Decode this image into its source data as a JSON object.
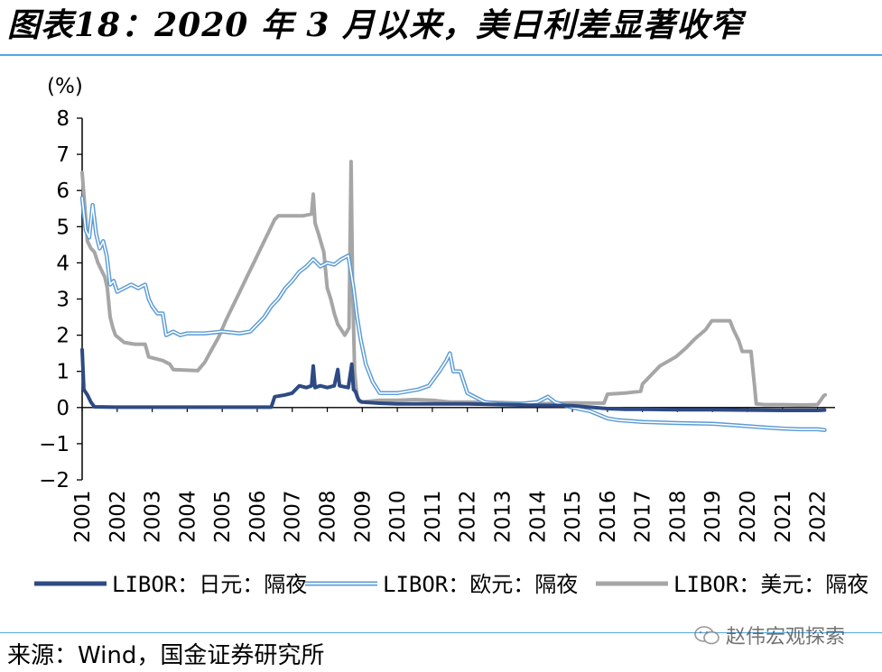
{
  "header": {
    "title": "图表18：2020 年 3 月以来，美日利差显著收窄"
  },
  "footer": {
    "source": "来源：Wind，国金证券研究所",
    "watermark": "赵伟宏观探索"
  },
  "chart_data": {
    "type": "line",
    "title": "",
    "unit_label": "(%)",
    "xlabel": "",
    "ylabel": "",
    "ylim": [
      -2,
      8
    ],
    "xlim": [
      2001,
      2022.5
    ],
    "yticks": [
      "8",
      "7",
      "6",
      "5",
      "4",
      "3",
      "2",
      "1",
      "0",
      "−1",
      "−2"
    ],
    "xticks": [
      "2001",
      "2002",
      "2003",
      "2004",
      "2005",
      "2006",
      "2007",
      "2008",
      "2009",
      "2010",
      "2011",
      "2012",
      "2013",
      "2014",
      "2015",
      "2016",
      "2017",
      "2018",
      "2019",
      "2020",
      "2021",
      "2022"
    ],
    "legend_position": "bottom",
    "grid": false,
    "series": [
      {
        "name": "LIBOR：美元：隔夜",
        "color": "#a6a6a6",
        "style": "thick",
        "points": [
          [
            2001.0,
            6.5
          ],
          [
            2001.08,
            5.5
          ],
          [
            2001.15,
            4.6
          ],
          [
            2001.25,
            4.4
          ],
          [
            2001.35,
            4.3
          ],
          [
            2001.45,
            4.0
          ],
          [
            2001.55,
            3.8
          ],
          [
            2001.65,
            3.6
          ],
          [
            2001.72,
            3.3
          ],
          [
            2001.8,
            2.5
          ],
          [
            2001.88,
            2.2
          ],
          [
            2001.95,
            2.0
          ],
          [
            2002.2,
            1.8
          ],
          [
            2002.5,
            1.75
          ],
          [
            2002.8,
            1.75
          ],
          [
            2002.9,
            1.4
          ],
          [
            2003.3,
            1.3
          ],
          [
            2003.5,
            1.2
          ],
          [
            2003.6,
            1.05
          ],
          [
            2004.3,
            1.02
          ],
          [
            2004.5,
            1.25
          ],
          [
            2004.7,
            1.6
          ],
          [
            2004.9,
            1.95
          ],
          [
            2005.1,
            2.4
          ],
          [
            2005.3,
            2.8
          ],
          [
            2005.5,
            3.2
          ],
          [
            2005.7,
            3.6
          ],
          [
            2005.9,
            4.0
          ],
          [
            2006.1,
            4.4
          ],
          [
            2006.3,
            4.8
          ],
          [
            2006.5,
            5.2
          ],
          [
            2006.6,
            5.3
          ],
          [
            2007.0,
            5.3
          ],
          [
            2007.3,
            5.3
          ],
          [
            2007.55,
            5.35
          ],
          [
            2007.6,
            5.9
          ],
          [
            2007.65,
            5.1
          ],
          [
            2007.75,
            4.8
          ],
          [
            2007.9,
            4.3
          ],
          [
            2008.0,
            3.3
          ],
          [
            2008.1,
            3.0
          ],
          [
            2008.2,
            2.6
          ],
          [
            2008.3,
            2.3
          ],
          [
            2008.5,
            2.0
          ],
          [
            2008.62,
            2.2
          ],
          [
            2008.68,
            6.8
          ],
          [
            2008.72,
            3.5
          ],
          [
            2008.78,
            1.0
          ],
          [
            2008.85,
            0.3
          ],
          [
            2008.95,
            0.15
          ],
          [
            2009.5,
            0.2
          ],
          [
            2010.0,
            0.2
          ],
          [
            2010.5,
            0.22
          ],
          [
            2011.0,
            0.2
          ],
          [
            2011.5,
            0.15
          ],
          [
            2012.0,
            0.15
          ],
          [
            2013.0,
            0.14
          ],
          [
            2014.0,
            0.1
          ],
          [
            2015.0,
            0.13
          ],
          [
            2015.9,
            0.12
          ],
          [
            2016.0,
            0.37
          ],
          [
            2016.5,
            0.4
          ],
          [
            2016.95,
            0.45
          ],
          [
            2017.0,
            0.65
          ],
          [
            2017.25,
            0.9
          ],
          [
            2017.5,
            1.15
          ],
          [
            2017.95,
            1.4
          ],
          [
            2018.25,
            1.65
          ],
          [
            2018.5,
            1.9
          ],
          [
            2018.8,
            2.15
          ],
          [
            2018.98,
            2.4
          ],
          [
            2019.5,
            2.4
          ],
          [
            2019.6,
            2.15
          ],
          [
            2019.75,
            1.85
          ],
          [
            2019.85,
            1.55
          ],
          [
            2020.1,
            1.55
          ],
          [
            2020.2,
            0.6
          ],
          [
            2020.25,
            0.1
          ],
          [
            2020.5,
            0.08
          ],
          [
            2021.0,
            0.08
          ],
          [
            2021.5,
            0.07
          ],
          [
            2022.0,
            0.08
          ],
          [
            2022.18,
            0.33
          ],
          [
            2022.22,
            0.35
          ]
        ]
      },
      {
        "name": "LIBOR：欧元：隔夜",
        "color": "#5b9bd5",
        "style": "double",
        "points": [
          [
            2001.0,
            5.8
          ],
          [
            2001.1,
            4.9
          ],
          [
            2001.2,
            4.7
          ],
          [
            2001.3,
            5.6
          ],
          [
            2001.4,
            4.8
          ],
          [
            2001.5,
            4.4
          ],
          [
            2001.6,
            4.6
          ],
          [
            2001.7,
            4.2
          ],
          [
            2001.8,
            3.4
          ],
          [
            2001.9,
            3.5
          ],
          [
            2002.0,
            3.2
          ],
          [
            2002.2,
            3.3
          ],
          [
            2002.4,
            3.4
          ],
          [
            2002.6,
            3.3
          ],
          [
            2002.8,
            3.4
          ],
          [
            2002.9,
            3.0
          ],
          [
            2003.0,
            2.8
          ],
          [
            2003.15,
            2.6
          ],
          [
            2003.3,
            2.6
          ],
          [
            2003.4,
            2.0
          ],
          [
            2003.6,
            2.1
          ],
          [
            2003.8,
            2.0
          ],
          [
            2004.0,
            2.05
          ],
          [
            2004.5,
            2.05
          ],
          [
            2005.0,
            2.1
          ],
          [
            2005.5,
            2.05
          ],
          [
            2005.8,
            2.1
          ],
          [
            2006.0,
            2.3
          ],
          [
            2006.2,
            2.5
          ],
          [
            2006.4,
            2.8
          ],
          [
            2006.6,
            3.0
          ],
          [
            2006.8,
            3.3
          ],
          [
            2007.0,
            3.5
          ],
          [
            2007.2,
            3.75
          ],
          [
            2007.4,
            3.9
          ],
          [
            2007.6,
            4.1
          ],
          [
            2007.8,
            3.9
          ],
          [
            2008.0,
            4.0
          ],
          [
            2008.2,
            3.95
          ],
          [
            2008.4,
            4.1
          ],
          [
            2008.6,
            4.2
          ],
          [
            2008.75,
            3.3
          ],
          [
            2008.85,
            2.5
          ],
          [
            2008.95,
            1.9
          ],
          [
            2009.1,
            1.2
          ],
          [
            2009.3,
            0.7
          ],
          [
            2009.5,
            0.4
          ],
          [
            2010.0,
            0.4
          ],
          [
            2010.3,
            0.45
          ],
          [
            2010.6,
            0.5
          ],
          [
            2010.9,
            0.6
          ],
          [
            2011.2,
            1.0
          ],
          [
            2011.4,
            1.3
          ],
          [
            2011.5,
            1.5
          ],
          [
            2011.6,
            1.0
          ],
          [
            2011.8,
            1.0
          ],
          [
            2011.9,
            0.7
          ],
          [
            2012.0,
            0.4
          ],
          [
            2012.5,
            0.15
          ],
          [
            2013.0,
            0.1
          ],
          [
            2013.5,
            0.1
          ],
          [
            2014.0,
            0.15
          ],
          [
            2014.3,
            0.3
          ],
          [
            2014.5,
            0.15
          ],
          [
            2014.8,
            0.05
          ],
          [
            2015.0,
            0.0
          ],
          [
            2015.5,
            -0.1
          ],
          [
            2016.0,
            -0.3
          ],
          [
            2016.3,
            -0.35
          ],
          [
            2017.0,
            -0.4
          ],
          [
            2018.0,
            -0.43
          ],
          [
            2019.0,
            -0.45
          ],
          [
            2019.8,
            -0.5
          ],
          [
            2020.5,
            -0.55
          ],
          [
            2021.0,
            -0.58
          ],
          [
            2021.5,
            -0.6
          ],
          [
            2022.0,
            -0.6
          ],
          [
            2022.2,
            -0.62
          ]
        ]
      },
      {
        "name": "LIBOR：日元：隔夜",
        "color": "#2e4a84",
        "style": "thick",
        "points": [
          [
            2001.0,
            1.6
          ],
          [
            2001.05,
            0.5
          ],
          [
            2001.15,
            0.35
          ],
          [
            2001.25,
            0.15
          ],
          [
            2001.35,
            0.02
          ],
          [
            2002.0,
            0.01
          ],
          [
            2003.0,
            0.01
          ],
          [
            2004.0,
            0.01
          ],
          [
            2005.0,
            0.01
          ],
          [
            2006.0,
            0.01
          ],
          [
            2006.4,
            0.01
          ],
          [
            2006.5,
            0.3
          ],
          [
            2006.8,
            0.35
          ],
          [
            2007.0,
            0.4
          ],
          [
            2007.2,
            0.6
          ],
          [
            2007.4,
            0.55
          ],
          [
            2007.55,
            0.6
          ],
          [
            2007.6,
            1.15
          ],
          [
            2007.65,
            0.55
          ],
          [
            2007.8,
            0.6
          ],
          [
            2008.0,
            0.55
          ],
          [
            2008.2,
            0.6
          ],
          [
            2008.3,
            1.05
          ],
          [
            2008.35,
            0.6
          ],
          [
            2008.6,
            0.55
          ],
          [
            2008.7,
            1.2
          ],
          [
            2008.75,
            0.5
          ],
          [
            2008.8,
            0.45
          ],
          [
            2008.9,
            0.2
          ],
          [
            2009.0,
            0.15
          ],
          [
            2009.5,
            0.12
          ],
          [
            2010.0,
            0.1
          ],
          [
            2011.0,
            0.1
          ],
          [
            2012.0,
            0.1
          ],
          [
            2013.0,
            0.08
          ],
          [
            2014.0,
            0.06
          ],
          [
            2015.0,
            0.05
          ],
          [
            2016.0,
            -0.03
          ],
          [
            2016.5,
            -0.05
          ],
          [
            2017.0,
            -0.05
          ],
          [
            2018.0,
            -0.06
          ],
          [
            2019.0,
            -0.06
          ],
          [
            2020.0,
            -0.07
          ],
          [
            2021.0,
            -0.08
          ],
          [
            2022.0,
            -0.08
          ],
          [
            2022.2,
            -0.07
          ]
        ]
      }
    ]
  }
}
